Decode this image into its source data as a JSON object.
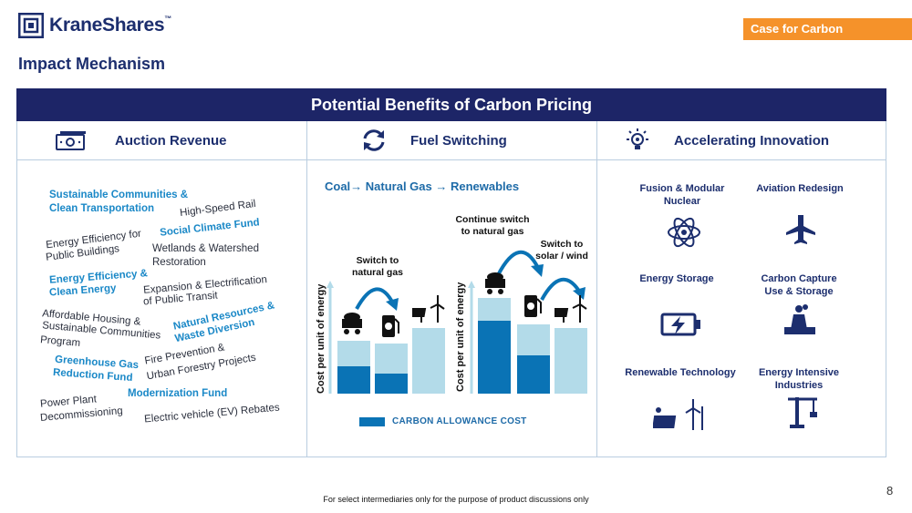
{
  "brand": {
    "name": "KraneShares",
    "tm": "™"
  },
  "tag": "Case for Carbon",
  "subtitle": "Impact Mechanism",
  "banner": "Potential Benefits of Carbon Pricing",
  "columns": {
    "auction": "Auction Revenue",
    "fuel": "Fuel Switching",
    "innovation": "Accelerating Innovation"
  },
  "auction_items": [
    "Sustainable Communities &",
    "Clean Transportation",
    "High-Speed Rail",
    "Social Climate Fund",
    "Energy Efficiency for",
    "Public Buildings",
    "Wetlands & Watershed",
    "Restoration",
    "Energy Efficiency &",
    "Clean Energy",
    "Expansion & Electrification",
    "of Public Transit",
    "Affordable Housing &",
    "Sustainable Communities",
    "Program",
    "Natural Resources &",
    "Waste Diversion",
    "Fire Prevention &",
    "Urban Forestry Projects",
    "Greenhouse Gas",
    "Reduction Fund",
    "Modernization Fund",
    "Power Plant",
    "Decommissioning",
    "Electric vehicle (EV) Rebates"
  ],
  "fuel": {
    "title": "Coal→ Natural Gas → Renewables",
    "note_left": [
      "Switch to",
      "natural gas"
    ],
    "note_top": [
      "Continue switch",
      "to natural gas"
    ],
    "note_right": [
      "Switch to",
      "solar / wind"
    ],
    "ylabel": "Cost per unit of energy",
    "legend": "CARBON ALLOWANCE COST",
    "chart_left": {
      "bars": [
        {
          "total": 58,
          "carbon": 30
        },
        {
          "total": 55,
          "carbon": 22
        },
        {
          "total": 72,
          "carbon": 0
        }
      ]
    },
    "chart_right": {
      "bars": [
        {
          "total": 105,
          "carbon": 80
        },
        {
          "total": 76,
          "carbon": 42
        },
        {
          "total": 72,
          "carbon": 0
        }
      ]
    }
  },
  "innovation": [
    {
      "label": [
        "Fusion & Modular",
        "Nuclear"
      ],
      "icon": "atom-icon"
    },
    {
      "label": [
        "Aviation Redesign"
      ],
      "icon": "airplane-icon"
    },
    {
      "label": [
        "Energy Storage"
      ],
      "icon": "battery-icon"
    },
    {
      "label": [
        "Carbon Capture",
        "Use & Storage"
      ],
      "icon": "factory-icon"
    },
    {
      "label": [
        "Renewable Technology"
      ],
      "icon": "solar-wind-icon"
    },
    {
      "label": [
        "Energy Intensive",
        "Industries"
      ],
      "icon": "crane-icon"
    }
  ],
  "footer": "For select intermediaries only for the purpose of product discussions only",
  "page_number": "8",
  "colors": {
    "navy": "#1d2567",
    "orange": "#f5922a",
    "blue": "#0a73b5",
    "light_blue": "#b3dbe9",
    "accent": "#1a88c7"
  }
}
